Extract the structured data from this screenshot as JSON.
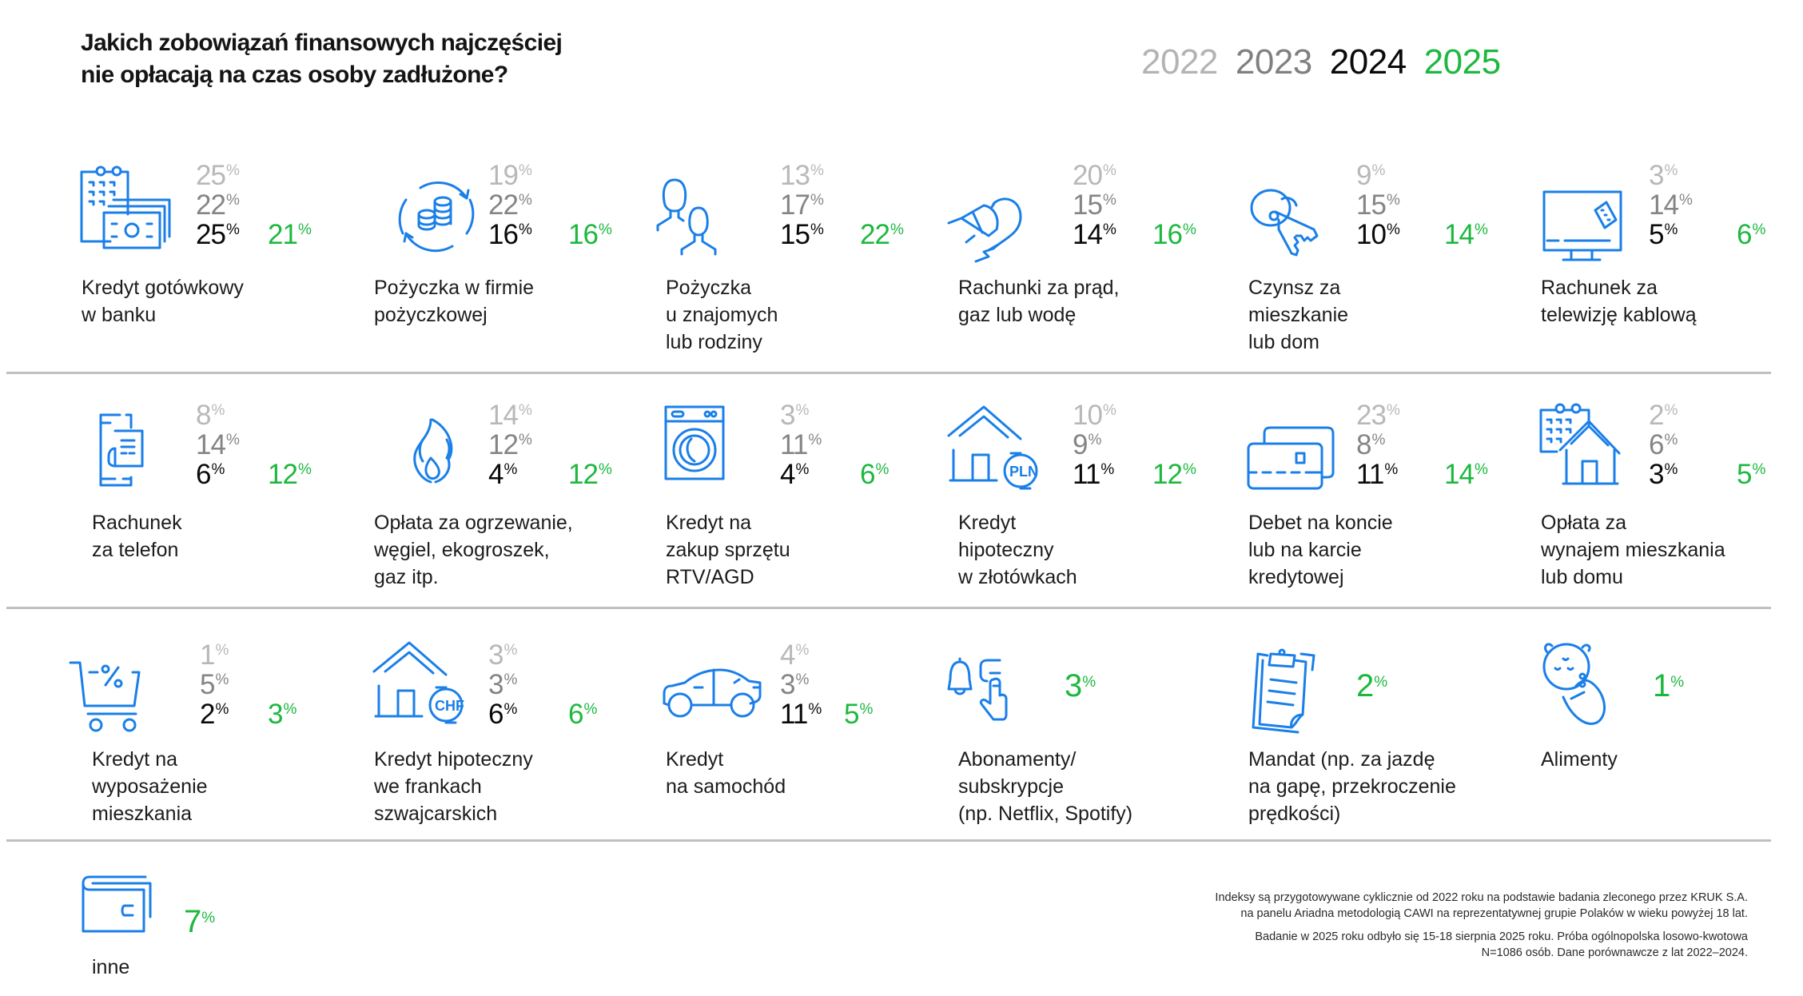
{
  "header": {
    "title_line1": "Jakich zobowiązań finansowych najczęściej",
    "title_line2": "nie opłacają na czas osoby zadłużone?",
    "years": [
      "2022",
      "2023",
      "2024",
      "2025"
    ]
  },
  "colors": {
    "year_2022": "#b8b8b8",
    "year_2023": "#858585",
    "year_2024": "#0a0a0a",
    "year_2025": "#1db83f",
    "icon": "#1a7fe8",
    "divider": "#c0c0c0"
  },
  "chart_data": {
    "type": "table",
    "title": "Jakich zobowiązań finansowych najczęściej nie opłacają na czas osoby zadłużone?",
    "unit": "%",
    "series": [
      "2022",
      "2023",
      "2024",
      "2025"
    ],
    "items": [
      {
        "icon": "cash-loan-icon",
        "label": [
          "Kredyt gotówkowy",
          "w banku"
        ],
        "values": {
          "2022": 25,
          "2023": 22,
          "2024": 25,
          "2025": 21
        }
      },
      {
        "icon": "coins-cycle-icon",
        "label": [
          "Pożyczka w firmie",
          "pożyczkowej"
        ],
        "values": {
          "2022": 19,
          "2023": 22,
          "2024": 16,
          "2025": 16
        }
      },
      {
        "icon": "people-icon",
        "label": [
          "Pożyczka",
          "u znajomych",
          "lub rodziny"
        ],
        "values": {
          "2022": 13,
          "2023": 17,
          "2024": 15,
          "2025": 22
        }
      },
      {
        "icon": "plug-icon",
        "label": [
          "Rachunki za prąd,",
          "gaz lub wodę"
        ],
        "values": {
          "2022": 20,
          "2023": 15,
          "2024": 14,
          "2025": 16
        }
      },
      {
        "icon": "keys-icon",
        "label": [
          "Czynsz za",
          "mieszkanie",
          "lub dom"
        ],
        "values": {
          "2022": 9,
          "2023": 15,
          "2024": 10,
          "2025": 14
        }
      },
      {
        "icon": "tv-remote-icon",
        "label": [
          "Rachunek za",
          "telewizję kablową"
        ],
        "values": {
          "2022": 3,
          "2023": 14,
          "2024": 5,
          "2025": 6
        }
      },
      {
        "icon": "phone-bill-icon",
        "label": [
          "Rachunek",
          "za telefon"
        ],
        "values": {
          "2022": 8,
          "2023": 14,
          "2024": 6,
          "2025": 12
        }
      },
      {
        "icon": "flame-icon",
        "label": [
          "Opłata za ogrzewanie,",
          "węgiel, ekogroszek,",
          "gaz itp."
        ],
        "values": {
          "2022": 14,
          "2023": 12,
          "2024": 4,
          "2025": 12
        }
      },
      {
        "icon": "washing-machine-icon",
        "label": [
          "Kredyt na",
          "zakup sprzętu",
          "RTV/AGD"
        ],
        "values": {
          "2022": 3,
          "2023": 11,
          "2024": 4,
          "2025": 6
        }
      },
      {
        "icon": "house-pln-icon",
        "label": [
          "Kredyt",
          "hipoteczny",
          "w złotówkach"
        ],
        "values": {
          "2022": 10,
          "2023": 9,
          "2024": 11,
          "2025": 12
        }
      },
      {
        "icon": "credit-card-icon",
        "label": [
          "Debet na koncie",
          "lub na karcie",
          "kredytowej"
        ],
        "values": {
          "2022": 23,
          "2023": 8,
          "2024": 11,
          "2025": 14
        }
      },
      {
        "icon": "house-calendar-icon",
        "label": [
          "Opłata za",
          "wynajem mieszkania",
          "lub domu"
        ],
        "values": {
          "2022": 2,
          "2023": 6,
          "2024": 3,
          "2025": 5
        }
      },
      {
        "icon": "cart-percent-icon",
        "label": [
          "Kredyt na",
          "wyposażenie",
          "mieszkania"
        ],
        "values": {
          "2022": 1,
          "2023": 5,
          "2024": 2,
          "2025": 3
        }
      },
      {
        "icon": "house-chf-icon",
        "label": [
          "Kredyt hipoteczny",
          "we frankach",
          "szwajcarskich"
        ],
        "values": {
          "2022": 3,
          "2023": 3,
          "2024": 6,
          "2025": 6
        }
      },
      {
        "icon": "car-icon",
        "label": [
          "Kredyt",
          "na samochód"
        ],
        "values": {
          "2022": 4,
          "2023": 3,
          "2024": 11,
          "2025": 5
        }
      },
      {
        "icon": "bell-subscription-icon",
        "label": [
          "Abonamenty/",
          "subskrypcje",
          "(np. Netflix, Spotify)"
        ],
        "values": {
          "2025": 3
        }
      },
      {
        "icon": "clipboard-ticket-icon",
        "label": [
          "Mandat (np. za jazdę",
          "na gapę, przekroczenie",
          "prędkości)"
        ],
        "values": {
          "2025": 2
        }
      },
      {
        "icon": "baby-icon",
        "label": [
          "Alimenty"
        ],
        "values": {
          "2025": 1
        }
      },
      {
        "icon": "wallet-icon",
        "label": [
          "inne"
        ],
        "values": {
          "2025": 7
        }
      }
    ]
  },
  "footnote": {
    "p1_line1": "Indeksy są przygotowywane cyklicznie od 2022 roku na podstawie badania zleconego przez KRUK S.A.",
    "p1_line2": "na panelu Ariadna metodologią CAWI na reprezentatywnej grupie Polaków w wieku powyżej 18 lat.",
    "p2_line1": "Badanie w 2025 roku odbyło się 15-18 sierpnia 2025 roku. Próba ogólnopolska losowo-kwotowa",
    "p2_line2": "N=1086 osób. Dane porównawcze z lat 2022–2024."
  }
}
